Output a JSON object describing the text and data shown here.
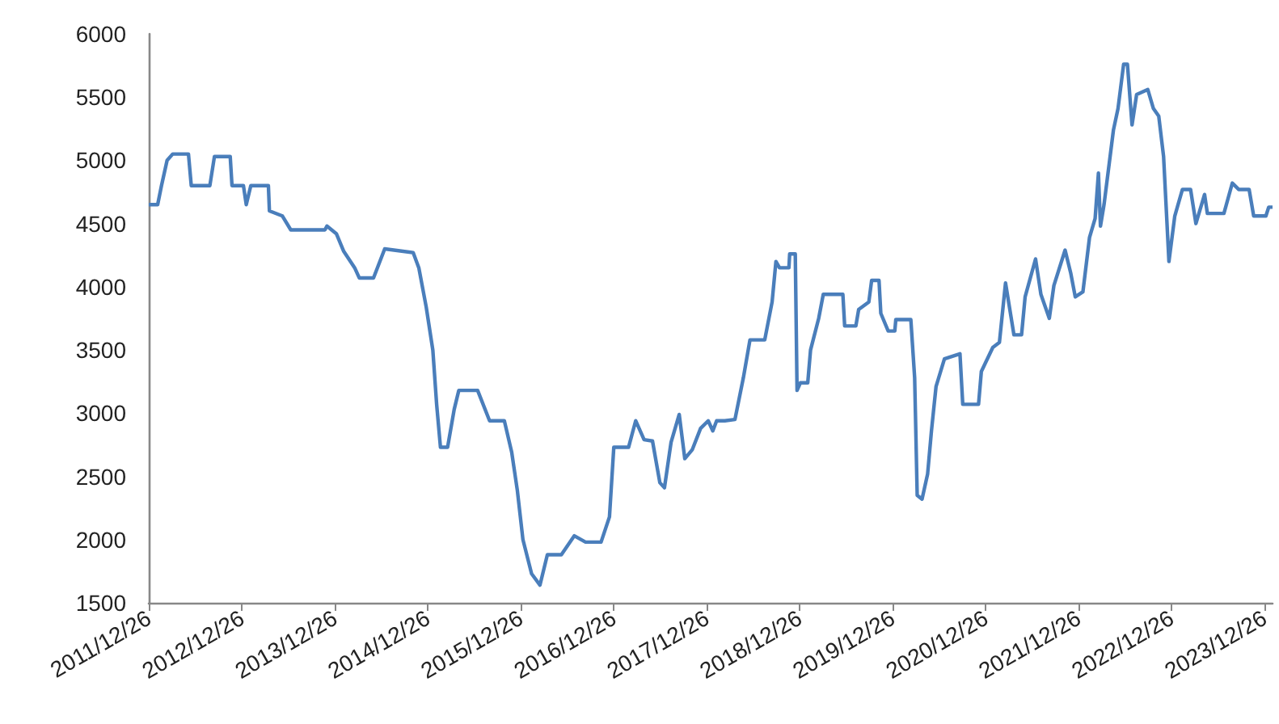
{
  "chart_data": {
    "type": "line",
    "x": [
      "2011-12-26",
      "2012-01-30",
      "2012-02-14",
      "2012-03-07",
      "2012-03-29",
      "2012-05-30",
      "2012-06-10",
      "2012-08-22",
      "2012-09-09",
      "2012-11-10",
      "2012-11-17",
      "2013-01-01",
      "2013-01-12",
      "2013-01-30",
      "2013-04-09",
      "2013-04-13",
      "2013-06-03",
      "2013-07-06",
      "2013-11-17",
      "2013-11-25",
      "2014-01-01",
      "2014-01-30",
      "2014-03-14",
      "2014-04-01",
      "2014-05-27",
      "2014-07-10",
      "2014-10-30",
      "2014-11-21",
      "2014-12-20",
      "2015-01-15",
      "2015-01-30",
      "2015-02-14",
      "2015-03-14",
      "2015-04-09",
      "2015-04-27",
      "2015-07-10",
      "2015-08-26",
      "2015-10-23",
      "2015-11-21",
      "2015-12-13",
      "2016-01-04",
      "2016-02-07",
      "2016-03-11",
      "2016-04-09",
      "2016-06-03",
      "2016-07-24",
      "2016-09-06",
      "2016-11-06",
      "2016-12-09",
      "2016-12-26",
      "2017-02-22",
      "2017-03-22",
      "2017-04-24",
      "2017-05-27",
      "2017-06-25",
      "2017-07-13",
      "2017-08-08",
      "2017-09-09",
      "2017-10-01",
      "2017-10-30",
      "2017-12-02",
      "2018-01-01",
      "2018-01-19",
      "2018-02-03",
      "2018-03-07",
      "2018-04-16",
      "2018-05-19",
      "2018-06-14",
      "2018-08-11",
      "2018-09-09",
      "2018-09-24",
      "2018-10-08",
      "2018-11-14",
      "2018-11-17",
      "2018-12-09",
      "2018-12-16",
      "2018-12-29",
      "2019-01-27",
      "2019-02-07",
      "2019-03-11",
      "2019-03-29",
      "2019-06-14",
      "2019-06-21",
      "2019-08-04",
      "2019-08-15",
      "2019-09-24",
      "2019-10-05",
      "2019-11-03",
      "2019-11-10",
      "2019-12-09",
      "2020-01-04",
      "2020-01-08",
      "2020-03-07",
      "2020-03-22",
      "2020-04-01",
      "2020-04-20",
      "2020-05-12",
      "2020-05-27",
      "2020-06-14",
      "2020-07-17",
      "2020-09-16",
      "2020-09-27",
      "2020-11-28",
      "2020-12-09",
      "2021-01-23",
      "2021-02-18",
      "2021-03-14",
      "2021-04-16",
      "2021-05-16",
      "2021-05-30",
      "2021-07-10",
      "2021-07-31",
      "2021-09-02",
      "2021-09-20",
      "2021-11-03",
      "2021-11-25",
      "2021-12-13",
      "2022-01-12",
      "2022-02-07",
      "2022-03-01",
      "2022-03-14",
      "2022-03-22",
      "2022-04-05",
      "2022-05-12",
      "2022-05-30",
      "2022-06-21",
      "2022-07-06",
      "2022-07-24",
      "2022-08-11",
      "2022-09-24",
      "2022-10-16",
      "2022-11-06",
      "2022-11-25",
      "2022-12-16",
      "2023-01-08",
      "2023-02-07",
      "2023-03-11",
      "2023-04-01",
      "2023-05-05",
      "2023-05-16",
      "2023-07-20",
      "2023-08-22",
      "2023-09-16",
      "2023-10-27",
      "2023-11-14",
      "2024-01-01",
      "2024-01-12",
      "2024-01-27"
    ],
    "series": [
      {
        "color": "#4a7ebb",
        "values": [
          4650,
          4650,
          4800,
          5000,
          5050,
          5050,
          4800,
          4800,
          5030,
          5030,
          4800,
          4800,
          4650,
          4800,
          4800,
          4600,
          4560,
          4450,
          4450,
          4480,
          4420,
          4280,
          4150,
          4070,
          4070,
          4300,
          4270,
          4150,
          3840,
          3500,
          3070,
          2730,
          2730,
          3030,
          3180,
          3180,
          2940,
          2940,
          2690,
          2390,
          2000,
          1730,
          1640,
          1880,
          1880,
          2030,
          1980,
          1980,
          2180,
          2730,
          2730,
          2940,
          2790,
          2780,
          2450,
          2410,
          2770,
          2990,
          2640,
          2710,
          2880,
          2940,
          2860,
          2940,
          2940,
          2950,
          3280,
          3580,
          3580,
          3880,
          4200,
          4150,
          4150,
          4260,
          4260,
          3180,
          3240,
          3240,
          3500,
          3750,
          3940,
          3940,
          3690,
          3690,
          3820,
          3880,
          4050,
          4050,
          3790,
          3650,
          3650,
          3740,
          3740,
          3280,
          2350,
          2320,
          2520,
          2860,
          3210,
          3430,
          3470,
          3070,
          3070,
          3330,
          3520,
          3560,
          4030,
          3620,
          3620,
          3920,
          4220,
          3940,
          3750,
          4010,
          4290,
          4110,
          3920,
          3960,
          4390,
          4540,
          4900,
          4480,
          4650,
          5240,
          5410,
          5760,
          5760,
          5280,
          5520,
          5560,
          5410,
          5350,
          5030,
          4200,
          4560,
          4770,
          4770,
          4500,
          4730,
          4580,
          4580,
          4820,
          4770,
          4770,
          4560,
          4560,
          4630,
          4630
        ]
      }
    ],
    "xlim": [
      "2011-12-26",
      "2024-01-27"
    ],
    "xticks": [
      {
        "value": "2011-12-26",
        "label": "2011/12/26"
      },
      {
        "value": "2012-12-26",
        "label": "2012/12/26"
      },
      {
        "value": "2013-12-26",
        "label": "2013/12/26"
      },
      {
        "value": "2014-12-26",
        "label": "2014/12/26"
      },
      {
        "value": "2015-12-26",
        "label": "2015/12/26"
      },
      {
        "value": "2016-12-26",
        "label": "2016/12/26"
      },
      {
        "value": "2017-12-26",
        "label": "2017/12/26"
      },
      {
        "value": "2018-12-26",
        "label": "2018/12/26"
      },
      {
        "value": "2019-12-26",
        "label": "2019/12/26"
      },
      {
        "value": "2020-12-26",
        "label": "2020/12/26"
      },
      {
        "value": "2021-12-26",
        "label": "2021/12/26"
      },
      {
        "value": "2022-12-26",
        "label": "2022/12/26"
      },
      {
        "value": "2023-12-26",
        "label": "2023/12/26"
      }
    ],
    "ylim": [
      1500,
      6000
    ],
    "yticks": [
      1500,
      2000,
      2500,
      3000,
      3500,
      4000,
      4500,
      5000,
      5500,
      6000
    ],
    "grid": false,
    "marker": "none",
    "line_style": "solid"
  }
}
